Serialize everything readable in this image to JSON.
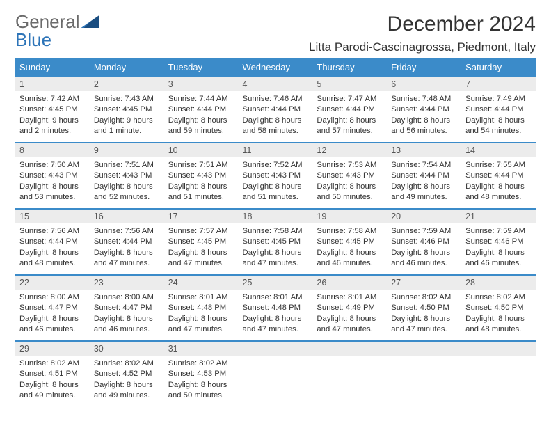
{
  "brand": {
    "part1": "General",
    "part2": "Blue"
  },
  "title": "December 2024",
  "location": "Litta Parodi-Cascinagrossa, Piedmont, Italy",
  "colors": {
    "header_bg": "#3b8bc9",
    "header_text": "#ffffff",
    "daynum_bg": "#ececec",
    "row_divider": "#3b8bc9",
    "body_text": "#333333",
    "brand_gray": "#6a6a6a",
    "brand_blue": "#2d74b8"
  },
  "weekdays": [
    "Sunday",
    "Monday",
    "Tuesday",
    "Wednesday",
    "Thursday",
    "Friday",
    "Saturday"
  ],
  "weeks": [
    [
      {
        "n": "1",
        "sr": "7:42 AM",
        "ss": "4:45 PM",
        "dl": "9 hours and 2 minutes."
      },
      {
        "n": "2",
        "sr": "7:43 AM",
        "ss": "4:45 PM",
        "dl": "9 hours and 1 minute."
      },
      {
        "n": "3",
        "sr": "7:44 AM",
        "ss": "4:44 PM",
        "dl": "8 hours and 59 minutes."
      },
      {
        "n": "4",
        "sr": "7:46 AM",
        "ss": "4:44 PM",
        "dl": "8 hours and 58 minutes."
      },
      {
        "n": "5",
        "sr": "7:47 AM",
        "ss": "4:44 PM",
        "dl": "8 hours and 57 minutes."
      },
      {
        "n": "6",
        "sr": "7:48 AM",
        "ss": "4:44 PM",
        "dl": "8 hours and 56 minutes."
      },
      {
        "n": "7",
        "sr": "7:49 AM",
        "ss": "4:44 PM",
        "dl": "8 hours and 54 minutes."
      }
    ],
    [
      {
        "n": "8",
        "sr": "7:50 AM",
        "ss": "4:43 PM",
        "dl": "8 hours and 53 minutes."
      },
      {
        "n": "9",
        "sr": "7:51 AM",
        "ss": "4:43 PM",
        "dl": "8 hours and 52 minutes."
      },
      {
        "n": "10",
        "sr": "7:51 AM",
        "ss": "4:43 PM",
        "dl": "8 hours and 51 minutes."
      },
      {
        "n": "11",
        "sr": "7:52 AM",
        "ss": "4:43 PM",
        "dl": "8 hours and 51 minutes."
      },
      {
        "n": "12",
        "sr": "7:53 AM",
        "ss": "4:43 PM",
        "dl": "8 hours and 50 minutes."
      },
      {
        "n": "13",
        "sr": "7:54 AM",
        "ss": "4:44 PM",
        "dl": "8 hours and 49 minutes."
      },
      {
        "n": "14",
        "sr": "7:55 AM",
        "ss": "4:44 PM",
        "dl": "8 hours and 48 minutes."
      }
    ],
    [
      {
        "n": "15",
        "sr": "7:56 AM",
        "ss": "4:44 PM",
        "dl": "8 hours and 48 minutes."
      },
      {
        "n": "16",
        "sr": "7:56 AM",
        "ss": "4:44 PM",
        "dl": "8 hours and 47 minutes."
      },
      {
        "n": "17",
        "sr": "7:57 AM",
        "ss": "4:45 PM",
        "dl": "8 hours and 47 minutes."
      },
      {
        "n": "18",
        "sr": "7:58 AM",
        "ss": "4:45 PM",
        "dl": "8 hours and 47 minutes."
      },
      {
        "n": "19",
        "sr": "7:58 AM",
        "ss": "4:45 PM",
        "dl": "8 hours and 46 minutes."
      },
      {
        "n": "20",
        "sr": "7:59 AM",
        "ss": "4:46 PM",
        "dl": "8 hours and 46 minutes."
      },
      {
        "n": "21",
        "sr": "7:59 AM",
        "ss": "4:46 PM",
        "dl": "8 hours and 46 minutes."
      }
    ],
    [
      {
        "n": "22",
        "sr": "8:00 AM",
        "ss": "4:47 PM",
        "dl": "8 hours and 46 minutes."
      },
      {
        "n": "23",
        "sr": "8:00 AM",
        "ss": "4:47 PM",
        "dl": "8 hours and 46 minutes."
      },
      {
        "n": "24",
        "sr": "8:01 AM",
        "ss": "4:48 PM",
        "dl": "8 hours and 47 minutes."
      },
      {
        "n": "25",
        "sr": "8:01 AM",
        "ss": "4:48 PM",
        "dl": "8 hours and 47 minutes."
      },
      {
        "n": "26",
        "sr": "8:01 AM",
        "ss": "4:49 PM",
        "dl": "8 hours and 47 minutes."
      },
      {
        "n": "27",
        "sr": "8:02 AM",
        "ss": "4:50 PM",
        "dl": "8 hours and 47 minutes."
      },
      {
        "n": "28",
        "sr": "8:02 AM",
        "ss": "4:50 PM",
        "dl": "8 hours and 48 minutes."
      }
    ],
    [
      {
        "n": "29",
        "sr": "8:02 AM",
        "ss": "4:51 PM",
        "dl": "8 hours and 49 minutes."
      },
      {
        "n": "30",
        "sr": "8:02 AM",
        "ss": "4:52 PM",
        "dl": "8 hours and 49 minutes."
      },
      {
        "n": "31",
        "sr": "8:02 AM",
        "ss": "4:53 PM",
        "dl": "8 hours and 50 minutes."
      },
      null,
      null,
      null,
      null
    ]
  ],
  "labels": {
    "sunrise": "Sunrise:",
    "sunset": "Sunset:",
    "daylight": "Daylight:"
  }
}
